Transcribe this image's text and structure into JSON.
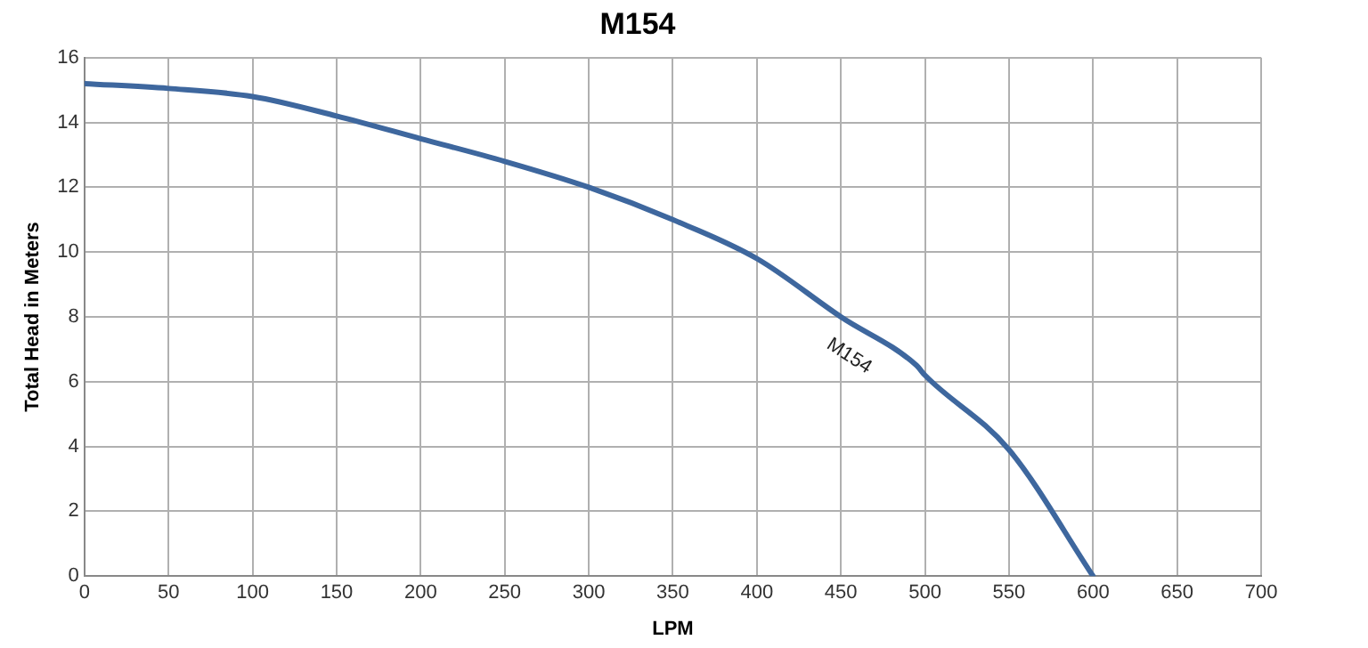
{
  "chart_data": {
    "type": "line",
    "title": "M154",
    "xlabel": "LPM",
    "ylabel": "Total Head in Meters",
    "series": [
      {
        "name": "M154",
        "color": "#3e679e",
        "x": [
          0,
          50,
          100,
          150,
          200,
          250,
          300,
          350,
          400,
          450,
          495,
          500,
          550,
          600
        ],
        "values": [
          15.2,
          15.05,
          14.8,
          14.2,
          13.5,
          12.8,
          12.0,
          11.0,
          9.8,
          8.0,
          6.5,
          6.2,
          3.9,
          0
        ]
      }
    ],
    "xlim": [
      0,
      700
    ],
    "xticks": [
      0,
      50,
      100,
      150,
      200,
      250,
      300,
      350,
      400,
      450,
      500,
      550,
      600,
      650,
      700
    ],
    "ylim": [
      0,
      16
    ],
    "yticks": [
      0,
      2,
      4,
      6,
      8,
      10,
      12,
      14,
      16
    ],
    "grid": true,
    "legend": false,
    "marker": "none",
    "line_style": "solid"
  }
}
